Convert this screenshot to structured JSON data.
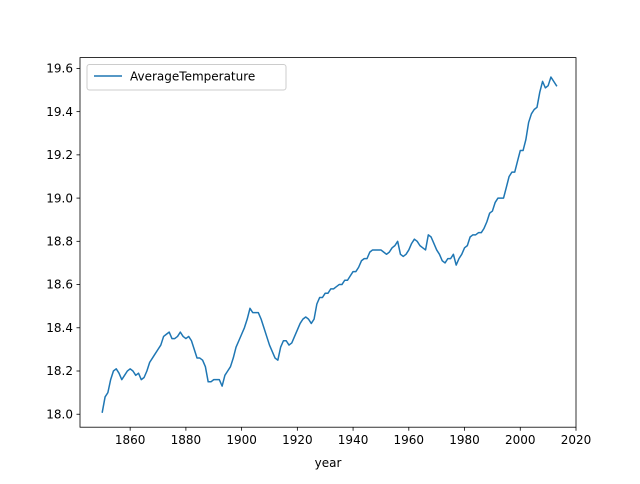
{
  "chart_data": {
    "type": "line",
    "title": "",
    "xlabel": "year",
    "ylabel": "",
    "xlim": [
      1842,
      2020
    ],
    "ylim": [
      17.94,
      19.65
    ],
    "xticks": [
      1860,
      1880,
      1900,
      1920,
      1940,
      1960,
      1980,
      2000,
      2020
    ],
    "yticks": [
      18.0,
      18.2,
      18.4,
      18.6,
      18.8,
      19.0,
      19.2,
      19.4,
      19.6
    ],
    "ytick_labels": [
      "18.0",
      "18.2",
      "18.4",
      "18.6",
      "18.8",
      "19.0",
      "19.2",
      "19.4",
      "19.6"
    ],
    "grid": false,
    "legend": {
      "placement": "top-left"
    },
    "series": [
      {
        "name": "AverageTemperature",
        "color": "#1f77b4",
        "points": [
          [
            1850,
            18.01
          ],
          [
            1851,
            18.08
          ],
          [
            1852,
            18.1
          ],
          [
            1853,
            18.16
          ],
          [
            1854,
            18.2
          ],
          [
            1855,
            18.21
          ],
          [
            1856,
            18.19
          ],
          [
            1857,
            18.16
          ],
          [
            1858,
            18.18
          ],
          [
            1859,
            18.2
          ],
          [
            1860,
            18.21
          ],
          [
            1861,
            18.2
          ],
          [
            1862,
            18.18
          ],
          [
            1863,
            18.19
          ],
          [
            1864,
            18.16
          ],
          [
            1865,
            18.17
          ],
          [
            1866,
            18.2
          ],
          [
            1867,
            18.24
          ],
          [
            1868,
            18.26
          ],
          [
            1869,
            18.28
          ],
          [
            1870,
            18.3
          ],
          [
            1871,
            18.32
          ],
          [
            1872,
            18.36
          ],
          [
            1873,
            18.37
          ],
          [
            1874,
            18.38
          ],
          [
            1875,
            18.35
          ],
          [
            1876,
            18.35
          ],
          [
            1877,
            18.36
          ],
          [
            1878,
            18.38
          ],
          [
            1879,
            18.36
          ],
          [
            1880,
            18.35
          ],
          [
            1881,
            18.36
          ],
          [
            1882,
            18.34
          ],
          [
            1883,
            18.3
          ],
          [
            1884,
            18.26
          ],
          [
            1885,
            18.26
          ],
          [
            1886,
            18.25
          ],
          [
            1887,
            18.22
          ],
          [
            1888,
            18.15
          ],
          [
            1889,
            18.15
          ],
          [
            1890,
            18.16
          ],
          [
            1891,
            18.16
          ],
          [
            1892,
            18.16
          ],
          [
            1893,
            18.13
          ],
          [
            1894,
            18.18
          ],
          [
            1895,
            18.2
          ],
          [
            1896,
            18.22
          ],
          [
            1897,
            18.26
          ],
          [
            1898,
            18.31
          ],
          [
            1899,
            18.34
          ],
          [
            1900,
            18.37
          ],
          [
            1901,
            18.4
          ],
          [
            1902,
            18.44
          ],
          [
            1903,
            18.49
          ],
          [
            1904,
            18.47
          ],
          [
            1905,
            18.47
          ],
          [
            1906,
            18.47
          ],
          [
            1907,
            18.44
          ],
          [
            1908,
            18.4
          ],
          [
            1909,
            18.36
          ],
          [
            1910,
            18.32
          ],
          [
            1911,
            18.29
          ],
          [
            1912,
            18.26
          ],
          [
            1913,
            18.25
          ],
          [
            1914,
            18.31
          ],
          [
            1915,
            18.34
          ],
          [
            1916,
            18.34
          ],
          [
            1917,
            18.32
          ],
          [
            1918,
            18.33
          ],
          [
            1919,
            18.36
          ],
          [
            1920,
            18.39
          ],
          [
            1921,
            18.42
          ],
          [
            1922,
            18.44
          ],
          [
            1923,
            18.45
          ],
          [
            1924,
            18.44
          ],
          [
            1925,
            18.42
          ],
          [
            1926,
            18.44
          ],
          [
            1927,
            18.51
          ],
          [
            1928,
            18.54
          ],
          [
            1929,
            18.54
          ],
          [
            1930,
            18.56
          ],
          [
            1931,
            18.56
          ],
          [
            1932,
            18.58
          ],
          [
            1933,
            18.58
          ],
          [
            1934,
            18.59
          ],
          [
            1935,
            18.6
          ],
          [
            1936,
            18.6
          ],
          [
            1937,
            18.62
          ],
          [
            1938,
            18.62
          ],
          [
            1939,
            18.64
          ],
          [
            1940,
            18.66
          ],
          [
            1941,
            18.66
          ],
          [
            1942,
            18.68
          ],
          [
            1943,
            18.71
          ],
          [
            1944,
            18.72
          ],
          [
            1945,
            18.72
          ],
          [
            1946,
            18.75
          ],
          [
            1947,
            18.76
          ],
          [
            1948,
            18.76
          ],
          [
            1949,
            18.76
          ],
          [
            1950,
            18.76
          ],
          [
            1951,
            18.75
          ],
          [
            1952,
            18.74
          ],
          [
            1953,
            18.75
          ],
          [
            1954,
            18.77
          ],
          [
            1955,
            18.78
          ],
          [
            1956,
            18.8
          ],
          [
            1957,
            18.74
          ],
          [
            1958,
            18.73
          ],
          [
            1959,
            18.74
          ],
          [
            1960,
            18.76
          ],
          [
            1961,
            18.79
          ],
          [
            1962,
            18.81
          ],
          [
            1963,
            18.8
          ],
          [
            1964,
            18.78
          ],
          [
            1965,
            18.77
          ],
          [
            1966,
            18.76
          ],
          [
            1967,
            18.83
          ],
          [
            1968,
            18.82
          ],
          [
            1969,
            18.79
          ],
          [
            1970,
            18.76
          ],
          [
            1971,
            18.74
          ],
          [
            1972,
            18.71
          ],
          [
            1973,
            18.7
          ],
          [
            1974,
            18.72
          ],
          [
            1975,
            18.72
          ],
          [
            1976,
            18.74
          ],
          [
            1977,
            18.69
          ],
          [
            1978,
            18.72
          ],
          [
            1979,
            18.74
          ],
          [
            1980,
            18.77
          ],
          [
            1981,
            18.78
          ],
          [
            1982,
            18.82
          ],
          [
            1983,
            18.83
          ],
          [
            1984,
            18.83
          ],
          [
            1985,
            18.84
          ],
          [
            1986,
            18.84
          ],
          [
            1987,
            18.86
          ],
          [
            1988,
            18.89
          ],
          [
            1989,
            18.93
          ],
          [
            1990,
            18.94
          ],
          [
            1991,
            18.98
          ],
          [
            1992,
            19.0
          ],
          [
            1993,
            19.0
          ],
          [
            1994,
            19.0
          ],
          [
            1995,
            19.05
          ],
          [
            1996,
            19.1
          ],
          [
            1997,
            19.12
          ],
          [
            1998,
            19.12
          ],
          [
            1999,
            19.17
          ],
          [
            2000,
            19.22
          ],
          [
            2001,
            19.22
          ],
          [
            2002,
            19.27
          ],
          [
            2003,
            19.35
          ],
          [
            2004,
            19.39
          ],
          [
            2005,
            19.41
          ],
          [
            2006,
            19.42
          ],
          [
            2007,
            19.49
          ],
          [
            2008,
            19.54
          ],
          [
            2009,
            19.51
          ],
          [
            2010,
            19.52
          ],
          [
            2011,
            19.56
          ],
          [
            2012,
            19.54
          ],
          [
            2013,
            19.52
          ]
        ]
      }
    ]
  }
}
